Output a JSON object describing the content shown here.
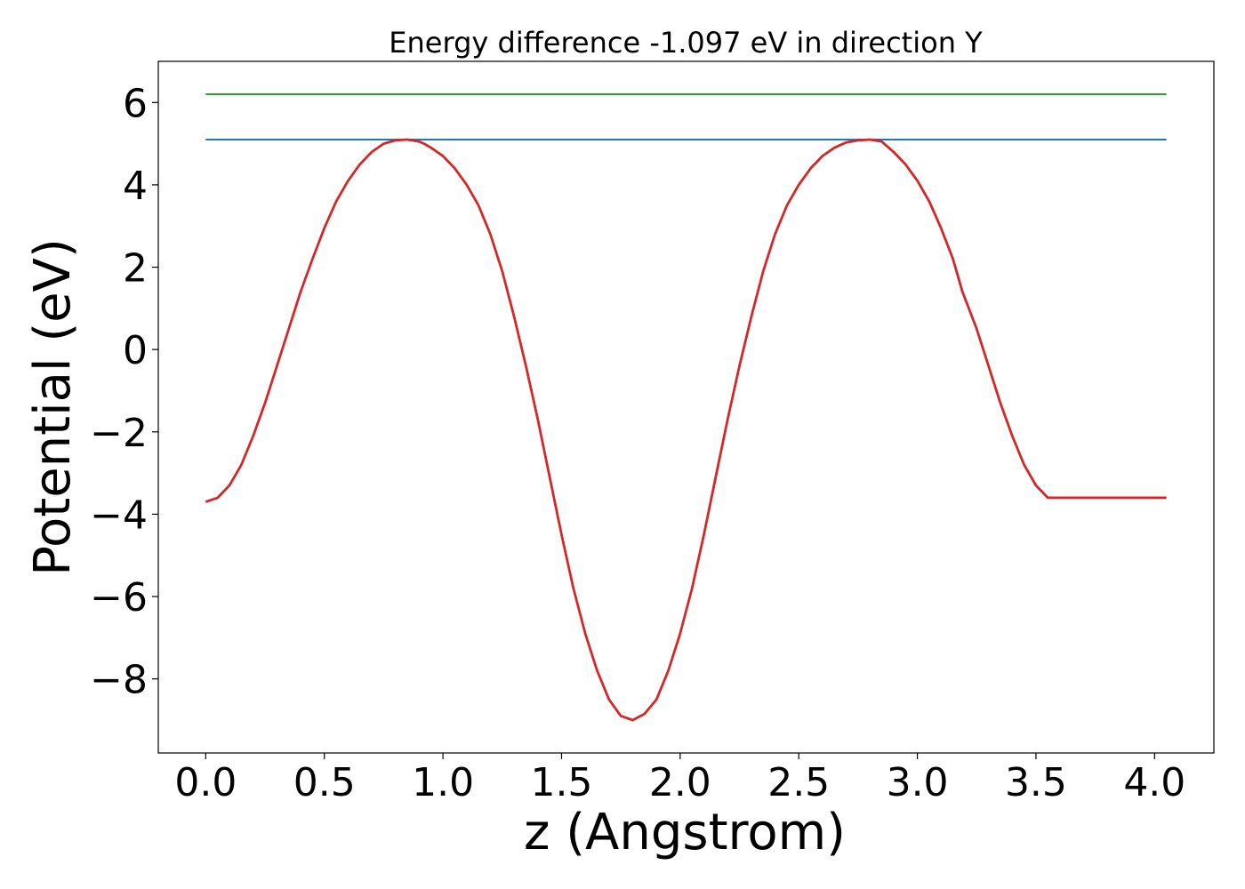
{
  "chart_data": {
    "type": "line",
    "title": "Energy difference -1.097 eV in direction Y",
    "xlabel": "z (Angstrom)",
    "ylabel": "Potential (eV)",
    "xlim": [
      -0.2,
      4.25
    ],
    "ylim": [
      -9.8,
      7.0
    ],
    "grid": false,
    "x_ticks": [
      {
        "value": 0.0,
        "label": "0.0"
      },
      {
        "value": 0.5,
        "label": "0.5"
      },
      {
        "value": 1.0,
        "label": "1.0"
      },
      {
        "value": 1.5,
        "label": "1.5"
      },
      {
        "value": 2.0,
        "label": "2.0"
      },
      {
        "value": 2.5,
        "label": "2.5"
      },
      {
        "value": 3.0,
        "label": "3.0"
      },
      {
        "value": 3.5,
        "label": "3.5"
      },
      {
        "value": 4.0,
        "label": "4.0"
      }
    ],
    "y_ticks": [
      {
        "value": 6,
        "label": "6"
      },
      {
        "value": 4,
        "label": "4"
      },
      {
        "value": 2,
        "label": "2"
      },
      {
        "value": 0,
        "label": "0"
      },
      {
        "value": -2,
        "label": "−2"
      },
      {
        "value": -4,
        "label": "−4"
      },
      {
        "value": -6,
        "label": "−6"
      },
      {
        "value": -8,
        "label": "−8"
      }
    ],
    "series": [
      {
        "color": "#2ca02c",
        "x": [
          0.0,
          4.05
        ],
        "y": [
          6.2,
          6.2
        ]
      },
      {
        "color": "#1f77b4",
        "x": [
          0.0,
          4.05
        ],
        "y": [
          5.1,
          5.1
        ]
      },
      {
        "color": "#d62728",
        "x": [
          0.0,
          0.05,
          0.1,
          0.15,
          0.2,
          0.25,
          0.3,
          0.35,
          0.4,
          0.45,
          0.5,
          0.55,
          0.6,
          0.65,
          0.7,
          0.75,
          0.8,
          0.85,
          0.9,
          0.92,
          0.95,
          1.0,
          1.05,
          1.1,
          1.15,
          1.2,
          1.25,
          1.3,
          1.35,
          1.4,
          1.45,
          1.5,
          1.55,
          1.6,
          1.65,
          1.7,
          1.75,
          1.8,
          1.85,
          1.9,
          1.95,
          2.0,
          2.05,
          2.1,
          2.15,
          2.2,
          2.25,
          2.3,
          2.35,
          2.4,
          2.45,
          2.5,
          2.55,
          2.6,
          2.65,
          2.7,
          2.75,
          2.8,
          2.85,
          2.9,
          2.95,
          3.0,
          3.05,
          3.1,
          3.15,
          3.19,
          3.25,
          3.3,
          3.35,
          3.4,
          3.45,
          3.5,
          3.55,
          3.6,
          3.65,
          3.7,
          3.75,
          3.8,
          3.85,
          3.9,
          3.95,
          4.0,
          4.05
        ],
        "y": [
          -3.7,
          -3.6,
          -3.3,
          -2.8,
          -2.1,
          -1.3,
          -0.4,
          0.5,
          1.4,
          2.2,
          2.95,
          3.6,
          4.1,
          4.5,
          4.8,
          5.0,
          5.08,
          5.1,
          5.05,
          5.0,
          4.9,
          4.7,
          4.4,
          4.0,
          3.5,
          2.8,
          1.9,
          0.8,
          -0.4,
          -1.7,
          -3.1,
          -4.5,
          -5.8,
          -6.9,
          -7.8,
          -8.5,
          -8.9,
          -9.0,
          -8.85,
          -8.5,
          -7.8,
          -6.9,
          -5.8,
          -4.5,
          -3.1,
          -1.7,
          -0.4,
          0.8,
          1.9,
          2.8,
          3.5,
          4.0,
          4.4,
          4.7,
          4.9,
          5.03,
          5.08,
          5.1,
          5.05,
          4.8,
          4.5,
          4.1,
          3.6,
          2.95,
          2.2,
          1.4,
          0.5,
          -0.4,
          -1.3,
          -2.1,
          -2.8,
          -3.3,
          -3.6,
          -3.6,
          -3.6,
          -3.6,
          -3.6,
          -3.6,
          -3.6,
          -3.6,
          -3.6,
          -3.6,
          -3.6
        ]
      }
    ]
  }
}
